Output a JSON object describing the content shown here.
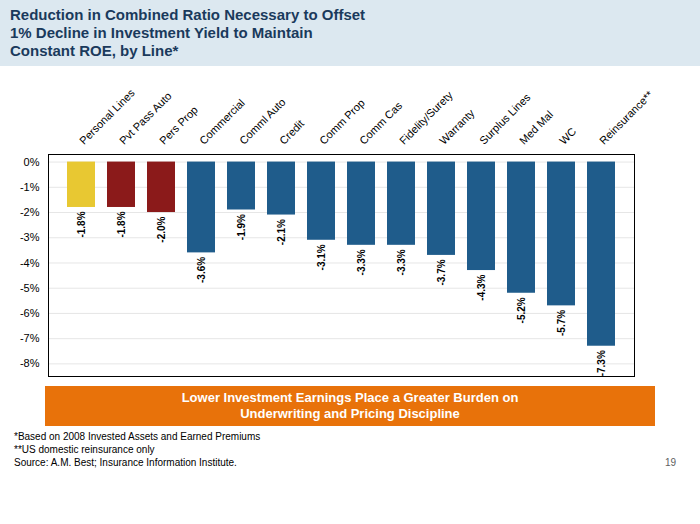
{
  "chart_data": {
    "type": "bar",
    "title": "Reduction in Combined Ratio Necessary to Offset\n1% Decline in Investment Yield to Maintain\nConstant ROE, by Line*",
    "categories": [
      "Personal Lines",
      "Pvt Pass Auto",
      "Pers Prop",
      "Commercial",
      "Comml Auto",
      "Credit",
      "Comm Prop",
      "Comm Cas",
      "Fidelity/Surety",
      "Warranty",
      "Surplus Lines",
      "Med Mal",
      "WC",
      "Reinsurance**"
    ],
    "values": [
      -1.8,
      -1.8,
      -2.0,
      -3.6,
      -1.9,
      -2.1,
      -3.1,
      -3.3,
      -3.3,
      -3.7,
      -4.3,
      -5.2,
      -5.7,
      -7.3
    ],
    "value_labels": [
      "-1.8%",
      "-1.8%",
      "-2.0%",
      "-3.6%",
      "-1.9%",
      "-2.1%",
      "-3.1%",
      "-3.3%",
      "-3.3%",
      "-3.7%",
      "-4.3%",
      "-5.2%",
      "-5.7%",
      "-7.3%"
    ],
    "colors": [
      "#e8c832",
      "#8b1a1a",
      "#8b1a1a",
      "#1f5c8b",
      "#1f5c8b",
      "#1f5c8b",
      "#1f5c8b",
      "#1f5c8b",
      "#1f5c8b",
      "#1f5c8b",
      "#1f5c8b",
      "#1f5c8b",
      "#1f5c8b",
      "#1f5c8b"
    ],
    "ylim": [
      -8.5,
      0.3
    ],
    "yticks": [
      {
        "value": 0,
        "label": "0%"
      },
      {
        "value": -1,
        "label": "-1%"
      },
      {
        "value": -2,
        "label": "-2%"
      },
      {
        "value": -3,
        "label": "-3%"
      },
      {
        "value": -4,
        "label": "-4%"
      },
      {
        "value": -5,
        "label": "-5%"
      },
      {
        "value": -6,
        "label": "-6%"
      },
      {
        "value": -7,
        "label": "-7%"
      },
      {
        "value": -8,
        "label": "-8%"
      }
    ],
    "grid": true,
    "data_labels": true,
    "annotations": [
      "Lower Investment Earnings Place a Greater Burden on\nUnderwriting and Pricing Discipline",
      "*Based on 2008 Invested Assets and Earned Premiums",
      "**US domestic reinsurance only",
      "Source: A.M. Best; Insurance Information Institute.",
      "19"
    ]
  }
}
